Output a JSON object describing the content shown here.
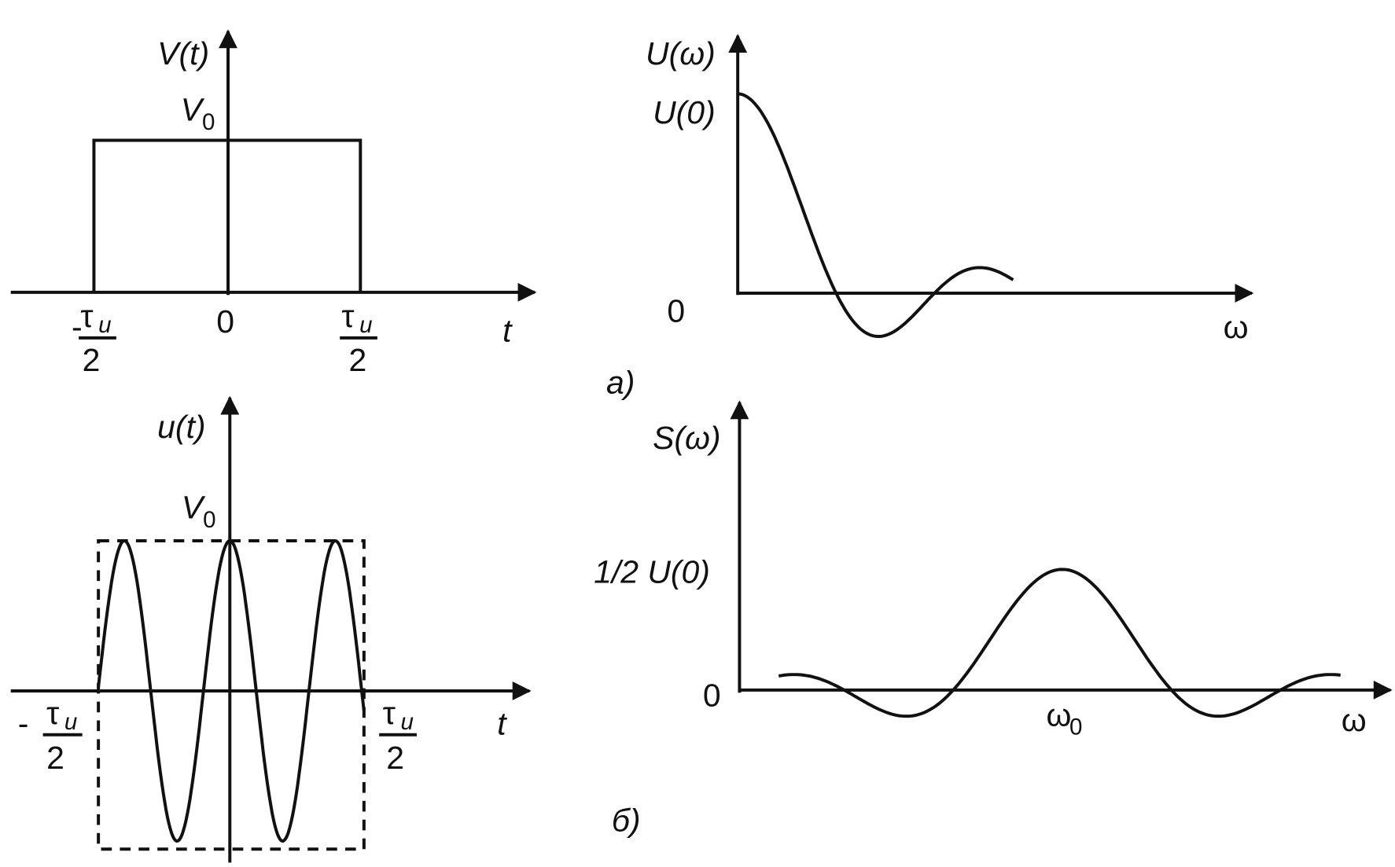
{
  "panel_a_time": {
    "y_label": "V(t)",
    "level": {
      "base": "V",
      "sub": "0"
    },
    "left": {
      "minus": "-",
      "tau": "τ",
      "tau_sub": "u",
      "den": "2"
    },
    "origin": "0",
    "right": {
      "tau": "τ",
      "tau_sub": "u",
      "den": "2"
    },
    "x_label": "t"
  },
  "panel_a_spectrum": {
    "y_label": "U(ω)",
    "level": "U(0)",
    "origin": "0",
    "x_label": "ω"
  },
  "caption_a": "а)",
  "panel_b_time": {
    "y_label": "u(t)",
    "level": {
      "base": "V",
      "sub": "0"
    },
    "left": {
      "minus": "-",
      "tau": "τ",
      "tau_sub": "u",
      "den": "2"
    },
    "right": {
      "tau": "τ",
      "tau_sub": "u",
      "den": "2"
    },
    "x_label": "t"
  },
  "panel_b_spectrum": {
    "y_label": "S(ω)",
    "level": "1/2 U(0)",
    "origin": "0",
    "center": {
      "base": "ω",
      "sub": "0"
    },
    "x_label": "ω"
  },
  "caption_b": "б)"
}
